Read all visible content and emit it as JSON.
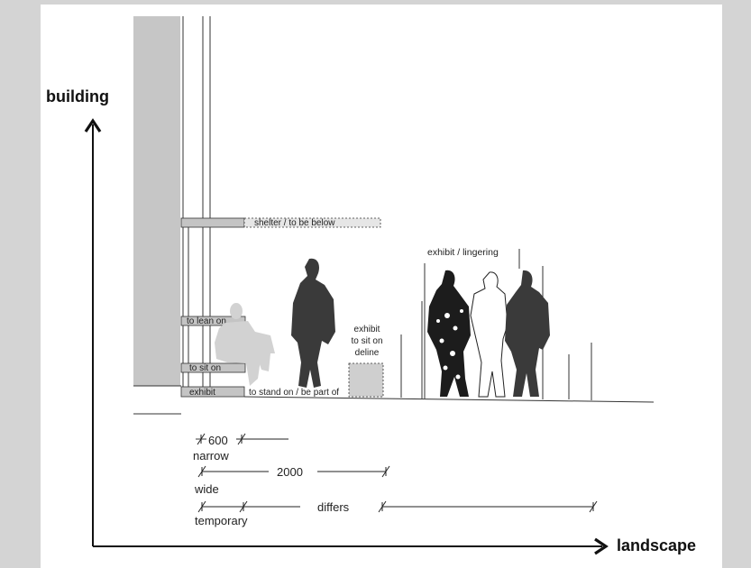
{
  "axes": {
    "y_label": "building",
    "x_label": "landscape"
  },
  "ledges": {
    "shelter": "shelter / to be below",
    "lean": "to lean on",
    "sit": "to sit on",
    "exhibit": "exhibit",
    "stand": "to stand on / be part of"
  },
  "exhibit_box": {
    "line1": "exhibit",
    "line2": "to sit on",
    "line3": "deline"
  },
  "lingering": "exhibit / lingering",
  "dimensions": {
    "d600": "600",
    "narrow": "narrow",
    "d2000": "2000",
    "wide": "wide",
    "differs": "differs",
    "temporary": "temporary"
  },
  "colors": {
    "page": "#ffffff",
    "frame": "#d4d4d4",
    "wall": "#c8c8c8",
    "ledge": "#c4c4c4",
    "figure_dark": "#3a3a3a",
    "figure_light": "#d2d2d2",
    "ink": "#111111"
  }
}
